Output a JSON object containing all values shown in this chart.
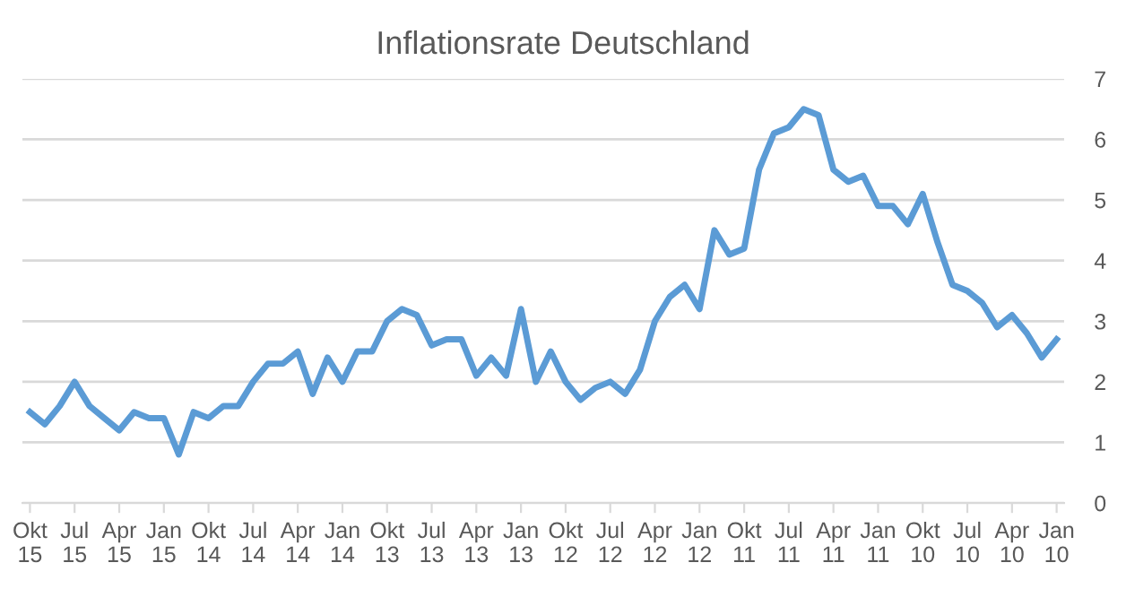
{
  "chart_data": {
    "type": "line",
    "title": "Inflationsrate Deutschland",
    "categories": [
      "Okt 15",
      null,
      null,
      "Jul 15",
      null,
      null,
      "Apr 15",
      null,
      null,
      "Jan 15",
      null,
      null,
      "Okt 14",
      null,
      null,
      "Jul 14",
      null,
      null,
      "Apr 14",
      null,
      null,
      "Jan 14",
      null,
      null,
      "Okt 13",
      null,
      null,
      "Jul 13",
      null,
      null,
      "Apr 13",
      null,
      null,
      "Jan 13",
      null,
      null,
      "Okt 12",
      null,
      null,
      "Jul 12",
      null,
      null,
      "Apr 12",
      null,
      null,
      "Jan 12",
      null,
      null,
      "Okt 11",
      null,
      null,
      "Jul 11",
      null,
      null,
      "Apr 11",
      null,
      null,
      "Jan 11",
      null,
      null,
      "Okt 10",
      null,
      null,
      "Jul 10",
      null,
      null,
      "Apr 10",
      null,
      null,
      "Jan 10"
    ],
    "series": [
      {
        "color": "#5b9bd5",
        "values": [
          1.5,
          1.3,
          1.6,
          2.0,
          1.6,
          1.4,
          1.2,
          1.5,
          1.4,
          1.4,
          0.8,
          1.5,
          1.4,
          1.6,
          1.6,
          2.0,
          2.3,
          2.3,
          2.5,
          1.8,
          2.4,
          2.0,
          2.5,
          2.5,
          3.0,
          3.2,
          3.1,
          2.6,
          2.7,
          2.7,
          2.1,
          2.4,
          2.1,
          3.2,
          2.0,
          2.5,
          2.0,
          1.7,
          1.9,
          2.0,
          1.8,
          2.2,
          3.0,
          3.4,
          3.6,
          3.2,
          4.5,
          4.1,
          4.2,
          5.5,
          6.1,
          6.2,
          6.5,
          6.4,
          5.5,
          5.3,
          5.4,
          4.9,
          4.9,
          4.6,
          5.1,
          4.3,
          3.6,
          3.5,
          3.3,
          2.9,
          3.1,
          2.8,
          2.4,
          2.7
        ]
      }
    ],
    "ylim": [
      0,
      7
    ],
    "yticks": [
      0,
      1,
      2,
      3,
      4,
      5,
      6,
      7
    ],
    "grid": "y",
    "legend": false,
    "marker": "none",
    "line_style": "solid"
  }
}
